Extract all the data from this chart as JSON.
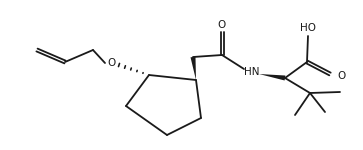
{
  "bg": "#ffffff",
  "line_color": "#1a1a1a",
  "line_width": 1.3,
  "fig_width": 3.63,
  "fig_height": 1.5,
  "dpi": 100,
  "atoms": {
    "O_label": "O",
    "HN_label": "HN",
    "HO_label": "HO"
  }
}
